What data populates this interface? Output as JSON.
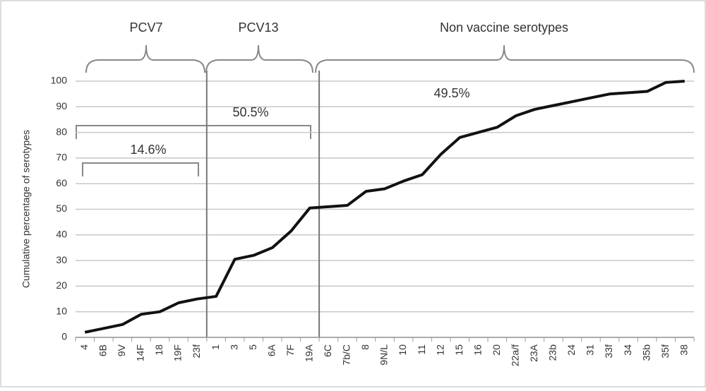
{
  "chart_data": {
    "type": "line",
    "y_label": "Cumulative percentage of serotypes",
    "categories": [
      "4",
      "6B",
      "9V",
      "14F",
      "18",
      "19F",
      "23f",
      "1",
      "3",
      "5",
      "6A",
      "7F",
      "19A",
      "6C",
      "7b/C",
      "8",
      "9N/L",
      "10",
      "11",
      "12",
      "15",
      "16",
      "20",
      "22a/f",
      "23A",
      "23b",
      "24",
      "31",
      "33f",
      "34",
      "35b",
      "35f",
      "38"
    ],
    "values": [
      2,
      3.5,
      5,
      9,
      10,
      13.5,
      15,
      16,
      30.5,
      32,
      35,
      41.5,
      50.5,
      51,
      51.5,
      57,
      58,
      61,
      63.5,
      71.5,
      78,
      80,
      82,
      86.5,
      89,
      90.5,
      92,
      93.5,
      95,
      95.5,
      96,
      99.5,
      100
    ],
    "color": "#111111",
    "ylim": [
      0,
      100
    ],
    "yticks": [
      0,
      10,
      20,
      30,
      40,
      50,
      60,
      70,
      80,
      90,
      100
    ],
    "grid": true,
    "annotations": {
      "group_pcv7": "PCV7",
      "group_pcv13": "PCV13",
      "group_nonvaccine": "Non vaccine  serotypes",
      "pct_pcv7": "14.6%",
      "pct_vaccine": "50.5%",
      "pct_nonvaccine": "49.5%"
    }
  }
}
